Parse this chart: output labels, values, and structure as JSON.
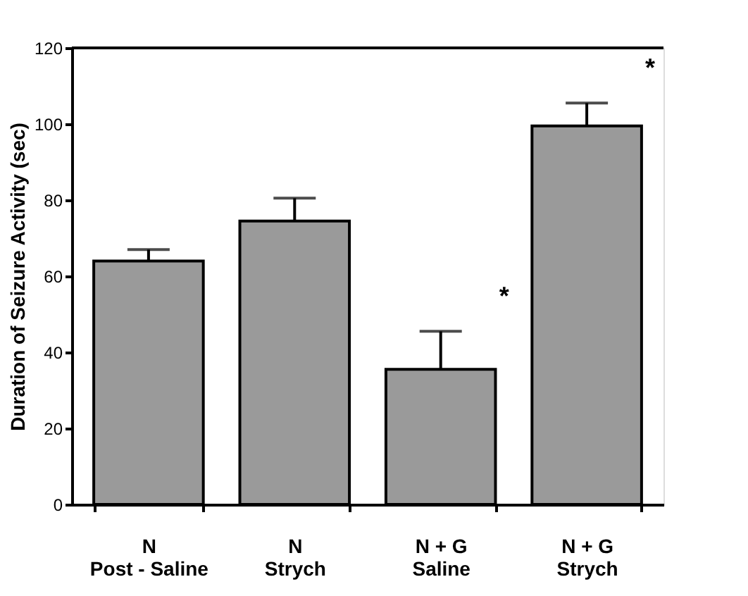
{
  "chart_data": {
    "type": "bar",
    "ylabel": "Duration of Seizure Activity (sec)",
    "categories": [
      "N\nPost - Saline",
      "N\nStrych",
      "N + G\nSaline",
      "N + G\nStrych"
    ],
    "values": [
      64,
      74.5,
      35.5,
      99.5
    ],
    "errors": [
      [
        64,
        67
      ],
      [
        74.5,
        80.5
      ],
      [
        35.5,
        45.5
      ],
      [
        99.5,
        105.5
      ]
    ],
    "color": "#9a9a9a",
    "ylim": [
      0,
      120
    ],
    "yticks": [
      0,
      20,
      40,
      60,
      80,
      100,
      120
    ],
    "annotations": [
      "*",
      "*"
    ],
    "grid": false
  }
}
